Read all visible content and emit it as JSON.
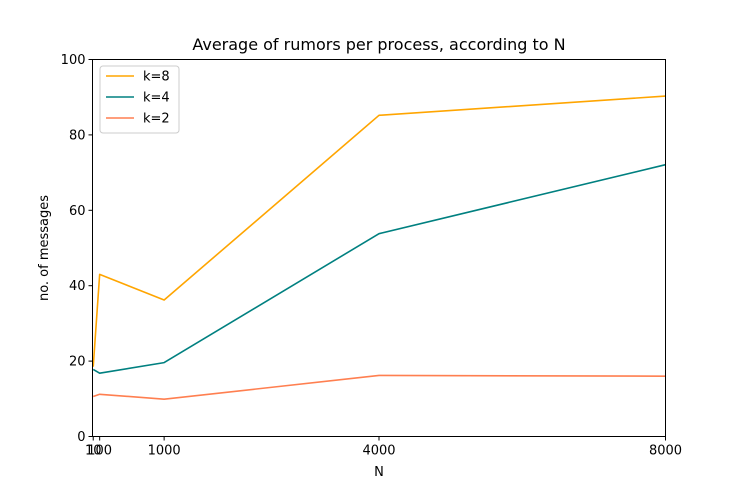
{
  "chart_data": {
    "type": "line",
    "title": "Average of rumors per process, according to N",
    "xlabel": "N",
    "ylabel": "no. of messages",
    "xlim": [
      0,
      8000
    ],
    "ylim": [
      0,
      100
    ],
    "x_ticks": [
      10,
      100,
      1000,
      4000,
      8000
    ],
    "x_tick_labels": [
      "10",
      "100",
      "1000",
      "4000",
      "8000"
    ],
    "y_ticks": [
      0,
      20,
      40,
      60,
      80,
      100
    ],
    "y_tick_labels": [
      "0",
      "20",
      "40",
      "60",
      "80",
      "100"
    ],
    "grid": false,
    "legend_position": "top-left",
    "x": [
      10,
      100,
      1000,
      4000,
      8000
    ],
    "series": [
      {
        "name": "k=8",
        "color": "#ffa500",
        "values": [
          18.5,
          43.0,
          36.2,
          85.2,
          90.3
        ]
      },
      {
        "name": "k=4",
        "color": "#008080",
        "values": [
          17.8,
          16.8,
          19.6,
          53.8,
          72.1
        ]
      },
      {
        "name": "k=2",
        "color": "#ff7f50",
        "values": [
          10.6,
          11.2,
          9.9,
          16.2,
          16.0
        ]
      }
    ]
  }
}
